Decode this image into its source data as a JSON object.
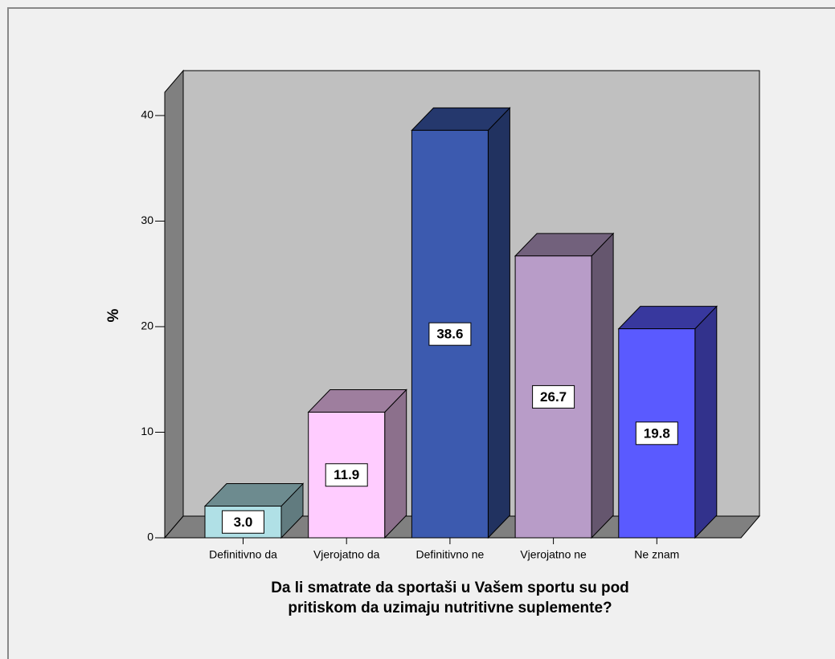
{
  "chart_data": {
    "type": "bar3d",
    "x_label": [
      "Da li smatrate da sportaši u Vašem sportu su pod",
      "pritiskom da uzimaju nutritivne suplemente?"
    ],
    "y_label": "%",
    "categories": [
      "Definitivno da",
      "Vjerojatno da",
      "Definitivno ne",
      "Vjerojatno ne",
      "Ne znam"
    ],
    "values": [
      3.0,
      11.9,
      38.6,
      26.7,
      19.8
    ],
    "value_labels": [
      "3.0",
      "11.9",
      "38.6",
      "26.7",
      "19.8"
    ],
    "colors": [
      "#b0e0e6",
      "#ffccff",
      "#3c5aaf",
      "#b89cc8",
      "#5a5aff"
    ],
    "ylim": [
      0,
      42.2
    ],
    "yticks": [
      0,
      10,
      20,
      30,
      40
    ]
  }
}
